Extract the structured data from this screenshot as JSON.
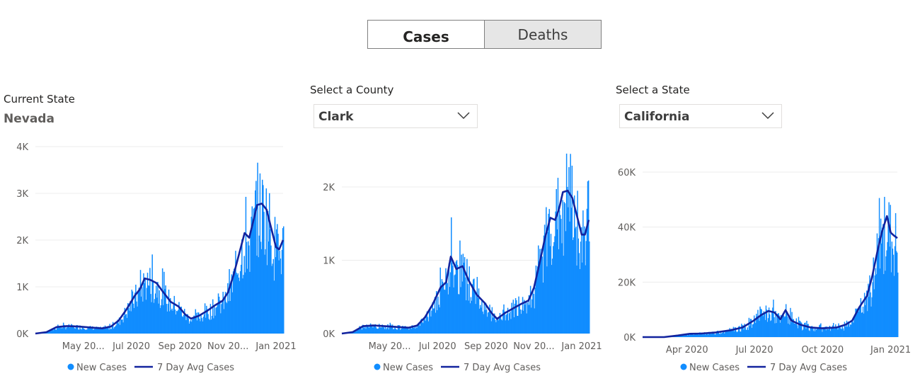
{
  "toggle": {
    "cases_label": "Cases",
    "deaths_label": "Deaths",
    "selected": "Cases"
  },
  "panels": {
    "state_current": {
      "label": "Current State",
      "value": "Nevada"
    },
    "county": {
      "label": "Select a County",
      "selected": "Clark"
    },
    "state_select": {
      "label": "Select a State",
      "selected": "California"
    }
  },
  "colors": {
    "bars": "#118dff",
    "avg_line": "#12239e",
    "grid": "#ececec"
  },
  "legend": {
    "new_cases": "New Cases",
    "avg": "7 Day Avg Cases"
  },
  "chart_data": [
    {
      "type": "bar",
      "x_start": "2020-03-01",
      "x_end": "2021-01-10",
      "ylim": [
        0,
        4000
      ],
      "y_ticks": [
        {
          "v": 0,
          "label": "0K"
        },
        {
          "v": 1000,
          "label": "1K"
        },
        {
          "v": 2000,
          "label": "2K"
        },
        {
          "v": 3000,
          "label": "3K"
        },
        {
          "v": 4000,
          "label": "4K"
        }
      ],
      "x_ticks": [
        {
          "date": "2020-05-01",
          "label": "May 20..."
        },
        {
          "date": "2020-07-01",
          "label": "Jul 2020"
        },
        {
          "date": "2020-09-01",
          "label": "Sep 2020"
        },
        {
          "date": "2020-11-01",
          "label": "Nov 20..."
        },
        {
          "date": "2021-01-01",
          "label": "Jan 2021"
        }
      ],
      "series": [
        {
          "name": "New Cases",
          "kind": "bars"
        },
        {
          "name": "7 Day Avg Cases",
          "kind": "line",
          "points": [
            [
              "2020-03-01",
              0
            ],
            [
              "2020-03-15",
              30
            ],
            [
              "2020-03-28",
              140
            ],
            [
              "2020-04-10",
              160
            ],
            [
              "2020-04-25",
              150
            ],
            [
              "2020-05-10",
              130
            ],
            [
              "2020-05-25",
              110
            ],
            [
              "2020-06-05",
              150
            ],
            [
              "2020-06-15",
              280
            ],
            [
              "2020-06-25",
              520
            ],
            [
              "2020-07-05",
              800
            ],
            [
              "2020-07-12",
              950
            ],
            [
              "2020-07-18",
              1180
            ],
            [
              "2020-07-25",
              1150
            ],
            [
              "2020-08-02",
              1080
            ],
            [
              "2020-08-10",
              900
            ],
            [
              "2020-08-20",
              680
            ],
            [
              "2020-08-30",
              580
            ],
            [
              "2020-09-08",
              400
            ],
            [
              "2020-09-15",
              320
            ],
            [
              "2020-09-25",
              380
            ],
            [
              "2020-10-05",
              480
            ],
            [
              "2020-10-15",
              600
            ],
            [
              "2020-10-25",
              700
            ],
            [
              "2020-11-01",
              880
            ],
            [
              "2020-11-08",
              1250
            ],
            [
              "2020-11-15",
              1700
            ],
            [
              "2020-11-22",
              2150
            ],
            [
              "2020-11-28",
              2050
            ],
            [
              "2020-12-03",
              2400
            ],
            [
              "2020-12-08",
              2750
            ],
            [
              "2020-12-14",
              2780
            ],
            [
              "2020-12-20",
              2650
            ],
            [
              "2020-12-26",
              2250
            ],
            [
              "2021-01-01",
              1850
            ],
            [
              "2021-01-05",
              1800
            ],
            [
              "2021-01-10",
              2000
            ]
          ]
        }
      ]
    },
    {
      "type": "bar",
      "x_start": "2020-03-01",
      "x_end": "2021-01-10",
      "ylim": [
        0,
        2500
      ],
      "y_ticks": [
        {
          "v": 0,
          "label": "0K"
        },
        {
          "v": 1000,
          "label": "1K"
        },
        {
          "v": 2000,
          "label": "2K"
        }
      ],
      "x_ticks": [
        {
          "date": "2020-05-01",
          "label": "May 20..."
        },
        {
          "date": "2020-07-01",
          "label": "Jul 2020"
        },
        {
          "date": "2020-09-01",
          "label": "Sep 2020"
        },
        {
          "date": "2020-11-01",
          "label": "Nov 20..."
        },
        {
          "date": "2021-01-01",
          "label": "Jan 2021"
        }
      ],
      "series": [
        {
          "name": "New Cases",
          "kind": "bars"
        },
        {
          "name": "7 Day Avg Cases",
          "kind": "line",
          "points": [
            [
              "2020-03-01",
              0
            ],
            [
              "2020-03-15",
              20
            ],
            [
              "2020-03-28",
              100
            ],
            [
              "2020-04-10",
              110
            ],
            [
              "2020-04-25",
              100
            ],
            [
              "2020-05-10",
              90
            ],
            [
              "2020-05-25",
              80
            ],
            [
              "2020-06-05",
              110
            ],
            [
              "2020-06-15",
              220
            ],
            [
              "2020-06-25",
              400
            ],
            [
              "2020-07-05",
              630
            ],
            [
              "2020-07-12",
              700
            ],
            [
              "2020-07-18",
              1050
            ],
            [
              "2020-07-25",
              880
            ],
            [
              "2020-08-02",
              920
            ],
            [
              "2020-08-10",
              720
            ],
            [
              "2020-08-20",
              530
            ],
            [
              "2020-08-30",
              420
            ],
            [
              "2020-09-08",
              280
            ],
            [
              "2020-09-15",
              200
            ],
            [
              "2020-09-25",
              280
            ],
            [
              "2020-10-05",
              340
            ],
            [
              "2020-10-15",
              400
            ],
            [
              "2020-10-25",
              450
            ],
            [
              "2020-11-01",
              620
            ],
            [
              "2020-11-08",
              950
            ],
            [
              "2020-11-15",
              1300
            ],
            [
              "2020-11-22",
              1580
            ],
            [
              "2020-11-28",
              1550
            ],
            [
              "2020-12-03",
              1700
            ],
            [
              "2020-12-08",
              1930
            ],
            [
              "2020-12-14",
              1950
            ],
            [
              "2020-12-20",
              1850
            ],
            [
              "2020-12-26",
              1600
            ],
            [
              "2021-01-01",
              1350
            ],
            [
              "2021-01-05",
              1350
            ],
            [
              "2021-01-10",
              1550
            ]
          ]
        }
      ]
    },
    {
      "type": "bar",
      "x_start": "2020-02-01",
      "x_end": "2021-01-10",
      "ylim": [
        0,
        65000
      ],
      "y_ticks": [
        {
          "v": 0,
          "label": "0K"
        },
        {
          "v": 20000,
          "label": "20K"
        },
        {
          "v": 40000,
          "label": "40K"
        },
        {
          "v": 60000,
          "label": "60K"
        }
      ],
      "x_ticks": [
        {
          "date": "2020-04-01",
          "label": "Apr 2020"
        },
        {
          "date": "2020-07-01",
          "label": "Jul 2020"
        },
        {
          "date": "2020-10-01",
          "label": "Oct 2020"
        },
        {
          "date": "2021-01-01",
          "label": "Jan 2021"
        }
      ],
      "series": [
        {
          "name": "New Cases",
          "kind": "bars"
        },
        {
          "name": "7 Day Avg Cases",
          "kind": "line",
          "points": [
            [
              "2020-02-01",
              0
            ],
            [
              "2020-03-01",
              10
            ],
            [
              "2020-03-20",
              600
            ],
            [
              "2020-04-05",
              1200
            ],
            [
              "2020-04-20",
              1300
            ],
            [
              "2020-05-10",
              1700
            ],
            [
              "2020-05-30",
              2500
            ],
            [
              "2020-06-15",
              3500
            ],
            [
              "2020-06-30",
              6000
            ],
            [
              "2020-07-10",
              8000
            ],
            [
              "2020-07-20",
              9500
            ],
            [
              "2020-07-28",
              9000
            ],
            [
              "2020-08-05",
              6500
            ],
            [
              "2020-08-12",
              9800
            ],
            [
              "2020-08-20",
              6000
            ],
            [
              "2020-09-01",
              4500
            ],
            [
              "2020-09-15",
              3500
            ],
            [
              "2020-10-01",
              3200
            ],
            [
              "2020-10-20",
              3500
            ],
            [
              "2020-11-01",
              4500
            ],
            [
              "2020-11-10",
              6000
            ],
            [
              "2020-11-20",
              11000
            ],
            [
              "2020-11-30",
              15000
            ],
            [
              "2020-12-07",
              22000
            ],
            [
              "2020-12-14",
              31000
            ],
            [
              "2020-12-20",
              38000
            ],
            [
              "2020-12-27",
              44000
            ],
            [
              "2021-01-01",
              38000
            ],
            [
              "2021-01-05",
              37000
            ],
            [
              "2021-01-10",
              36000
            ]
          ]
        }
      ]
    }
  ]
}
